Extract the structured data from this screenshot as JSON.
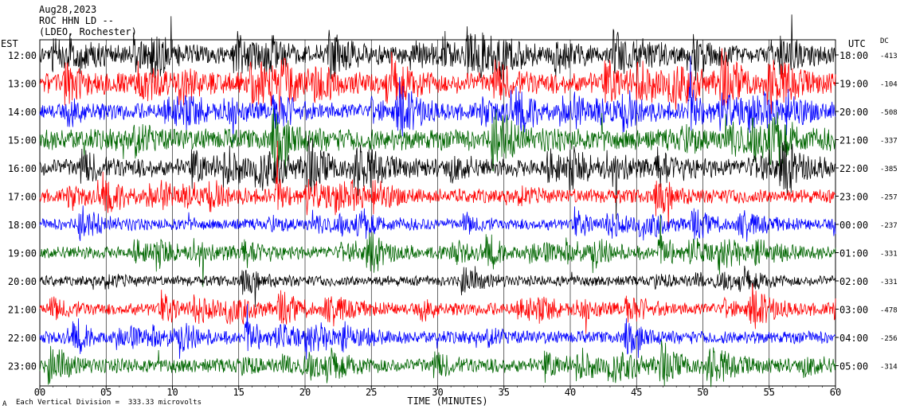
{
  "header": {
    "date": "Aug28,2023",
    "station": "ROC HHN LD --",
    "network": "(LDEO, Rochester)"
  },
  "left_tz": "EST",
  "right_tz": "UTC",
  "dc_header": "DC",
  "footer": {
    "scale": "Each Vertical Division =  333.33 microvolts",
    "logo": "A"
  },
  "chart_data": {
    "type": "line",
    "xlabel": "TIME (MINUTES)",
    "xlim": [
      0,
      60
    ],
    "xticks": [
      "00",
      "05",
      "10",
      "15",
      "20",
      "25",
      "30",
      "35",
      "40",
      "45",
      "50",
      "55",
      "60"
    ],
    "colors": [
      "#000000",
      "#ff0000",
      "#0000ff",
      "#006600"
    ],
    "rows": [
      {
        "est": "12:00",
        "utc": "18:00",
        "dc": "-413",
        "amp": 1.4
      },
      {
        "est": "13:00",
        "utc": "19:00",
        "dc": "-104",
        "amp": 1.6
      },
      {
        "est": "14:00",
        "utc": "20:00",
        "dc": "-508",
        "amp": 1.3
      },
      {
        "est": "15:00",
        "utc": "21:00",
        "dc": "-337",
        "amp": 1.7
      },
      {
        "est": "16:00",
        "utc": "22:00",
        "dc": "-385",
        "amp": 1.4
      },
      {
        "est": "17:00",
        "utc": "23:00",
        "dc": "-257",
        "amp": 1.1
      },
      {
        "est": "18:00",
        "utc": "00:00",
        "dc": "-237",
        "amp": 0.9
      },
      {
        "est": "19:00",
        "utc": "01:00",
        "dc": "-331",
        "amp": 1.0
      },
      {
        "est": "20:00",
        "utc": "02:00",
        "dc": "-331",
        "amp": 0.8
      },
      {
        "est": "21:00",
        "utc": "03:00",
        "dc": "-478",
        "amp": 1.0
      },
      {
        "est": "22:00",
        "utc": "04:00",
        "dc": "-256",
        "amp": 1.0
      },
      {
        "est": "23:00",
        "utc": "05:00",
        "dc": "-314",
        "amp": 1.1
      }
    ]
  }
}
